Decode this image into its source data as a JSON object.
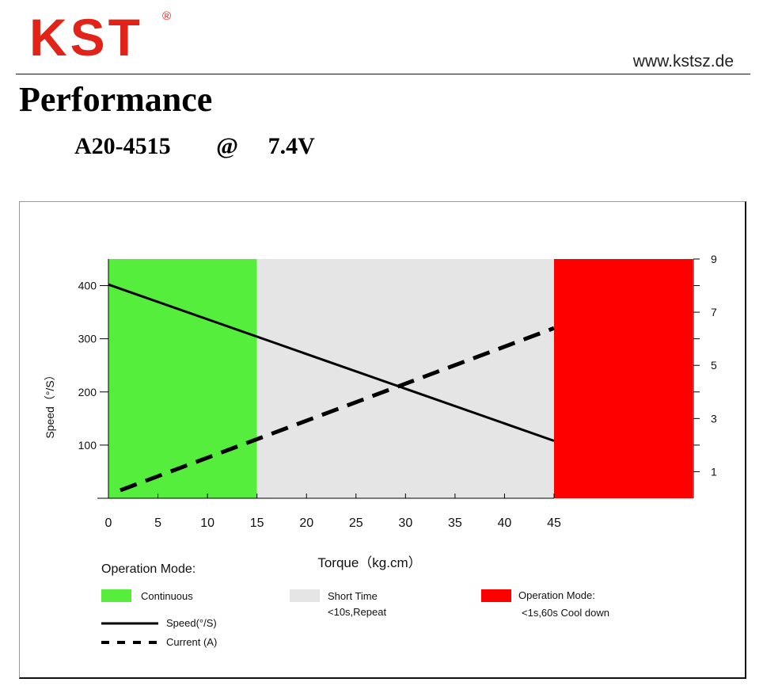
{
  "brand": {
    "logo_text": "KST",
    "registered_mark": "®",
    "website": "www.kstsz.de"
  },
  "page": {
    "title": "Performance",
    "model": "A20-4515",
    "at_sign": "@",
    "voltage": "7.4V"
  },
  "chart_data": {
    "type": "line",
    "xlabel": "Torque（kg.cm）",
    "ylabel": "Speed（°/S）",
    "x_ticks": [
      0,
      5,
      10,
      15,
      20,
      25,
      30,
      35,
      40,
      45
    ],
    "xlim": [
      0,
      59
    ],
    "y_left_ticks": [
      100,
      200,
      300,
      400
    ],
    "ylim_left": [
      0,
      450
    ],
    "y_right_ticks": [
      1,
      3,
      5,
      7,
      9
    ],
    "ylim_right": [
      0,
      9
    ],
    "zones": [
      {
        "label": "Continuous",
        "x_from": 0,
        "x_to": 15,
        "color": "#55ee3c"
      },
      {
        "label": "Short Time <10s,Repeat",
        "x_from": 15,
        "x_to": 45,
        "color": "#e5e5e5"
      },
      {
        "label": "Operation Mode: <1s,60s Cool down",
        "x_from": 45,
        "x_to": 59,
        "color": "#ff0000"
      }
    ],
    "series": [
      {
        "name": "Speed(°/S)",
        "axis": "left",
        "style": "solid",
        "color": "#000000",
        "x": [
          0,
          45
        ],
        "y": [
          402,
          108
        ]
      },
      {
        "name": "Current (A)",
        "axis": "right",
        "style": "dashed",
        "color": "#000000",
        "x": [
          1.2,
          45
        ],
        "y": [
          0.3,
          6.4
        ]
      }
    ]
  },
  "legend": {
    "title": "Operation Mode:",
    "continuous": "Continuous",
    "short_time_line1": "Short Time",
    "short_time_line2": "<10s,Repeat",
    "operation_line1": "Operation Mode:",
    "operation_line2": "<1s,60s Cool down",
    "speed": "Speed(°/S)",
    "current": "Current (A)",
    "colors": {
      "continuous": "#55ee3c",
      "short_time": "#e5e5e5",
      "operation": "#ff0000"
    }
  }
}
